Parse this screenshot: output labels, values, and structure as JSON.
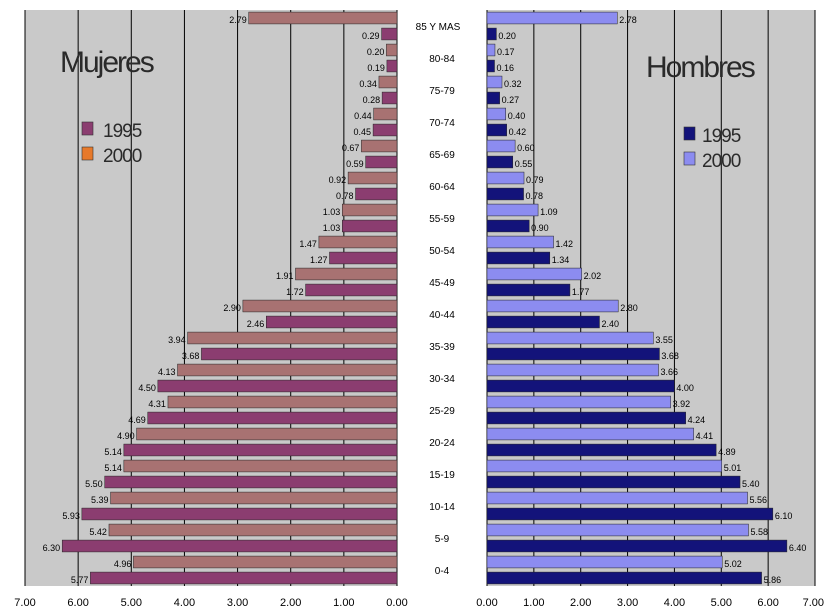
{
  "colors": {
    "plot_bg": "#c9c9c9",
    "women_1995": "#8b3d70",
    "women_2000": "#a87272",
    "women_legend_2000": "#e7792a",
    "men_1995": "#13137a",
    "men_2000": "#8c8cf0"
  },
  "chart_data": [
    {
      "type": "bar",
      "orientation": "horizontal",
      "title": "Mujeres",
      "xlim": [
        0,
        7
      ],
      "x_reversed": true,
      "x_ticks": [
        "7.00",
        "6.00",
        "5.00",
        "4.00",
        "3.00",
        "2.00",
        "1.00",
        "0.00"
      ],
      "legend": [
        "1995",
        "2000"
      ],
      "bars": [
        {
          "value": 5.77,
          "label": "5.77"
        },
        {
          "value": 4.96,
          "label": "4.96"
        },
        {
          "value": 6.3,
          "label": "6.30"
        },
        {
          "value": 5.42,
          "label": "5.42"
        },
        {
          "value": 5.93,
          "label": "5.93"
        },
        {
          "value": 5.39,
          "label": "5.39"
        },
        {
          "value": 5.5,
          "label": "5.50"
        },
        {
          "value": 5.14,
          "label": "5.14"
        },
        {
          "value": 5.14,
          "label": "5.14"
        },
        {
          "value": 4.9,
          "label": "4.90"
        },
        {
          "value": 4.69,
          "label": "4.69"
        },
        {
          "value": 4.31,
          "label": "4.31"
        },
        {
          "value": 4.5,
          "label": "4.50"
        },
        {
          "value": 4.13,
          "label": "4.13"
        },
        {
          "value": 3.68,
          "label": "3.68"
        },
        {
          "value": 3.94,
          "label": "3.94"
        },
        {
          "value": 2.46,
          "label": "2.46"
        },
        {
          "value": 2.9,
          "label": "2.90"
        },
        {
          "value": 1.72,
          "label": "1.72"
        },
        {
          "value": 1.91,
          "label": "1.91"
        },
        {
          "value": 1.27,
          "label": "1.27"
        },
        {
          "value": 1.47,
          "label": "1.47"
        },
        {
          "value": 1.03,
          "label": "1.03"
        },
        {
          "value": 1.03,
          "label": "1.03"
        },
        {
          "value": 0.78,
          "label": "0.78"
        },
        {
          "value": 0.92,
          "label": "0.92"
        },
        {
          "value": 0.59,
          "label": "0.59"
        },
        {
          "value": 0.67,
          "label": "0.67"
        },
        {
          "value": 0.45,
          "label": "0.45"
        },
        {
          "value": 0.44,
          "label": "0.44"
        },
        {
          "value": 0.28,
          "label": "0.28"
        },
        {
          "value": 0.34,
          "label": "0.34"
        },
        {
          "value": 0.19,
          "label": "0.19"
        },
        {
          "value": 0.2,
          "label": "0.20"
        },
        {
          "value": 0.29,
          "label": "0.29"
        },
        {
          "value": 2.79,
          "label": "2.79"
        }
      ]
    },
    {
      "type": "bar",
      "orientation": "horizontal",
      "title": "Hombres",
      "xlim": [
        0,
        7
      ],
      "x_ticks": [
        "0.00",
        "1.00",
        "2.00",
        "3.00",
        "4.00",
        "5.00",
        "6.00",
        "7.00"
      ],
      "legend": [
        "1995",
        "2000"
      ],
      "bars": [
        {
          "value": 5.86,
          "label": "5.86"
        },
        {
          "value": 5.02,
          "label": "5.02"
        },
        {
          "value": 6.4,
          "label": "6.40"
        },
        {
          "value": 5.58,
          "label": "5.58"
        },
        {
          "value": 6.1,
          "label": "6.10"
        },
        {
          "value": 5.56,
          "label": "5.56"
        },
        {
          "value": 5.4,
          "label": "5.40"
        },
        {
          "value": 5.01,
          "label": "5.01"
        },
        {
          "value": 4.89,
          "label": "4.89"
        },
        {
          "value": 4.41,
          "label": "4.41"
        },
        {
          "value": 4.24,
          "label": "4.24"
        },
        {
          "value": 3.92,
          "label": "3.92"
        },
        {
          "value": 4.0,
          "label": "4.00"
        },
        {
          "value": 3.66,
          "label": "3.66"
        },
        {
          "value": 3.68,
          "label": "3.68"
        },
        {
          "value": 3.55,
          "label": "3.55"
        },
        {
          "value": 2.4,
          "label": "2.40"
        },
        {
          "value": 2.8,
          "label": "2.80"
        },
        {
          "value": 1.77,
          "label": "1.77"
        },
        {
          "value": 2.02,
          "label": "2.02"
        },
        {
          "value": 1.34,
          "label": "1.34"
        },
        {
          "value": 1.42,
          "label": "1.42"
        },
        {
          "value": 0.9,
          "label": "0.90"
        },
        {
          "value": 1.09,
          "label": "1.09"
        },
        {
          "value": 0.78,
          "label": "0.78"
        },
        {
          "value": 0.79,
          "label": "0.79"
        },
        {
          "value": 0.55,
          "label": "0.55"
        },
        {
          "value": 0.6,
          "label": "0.60"
        },
        {
          "value": 0.42,
          "label": "0.42"
        },
        {
          "value": 0.4,
          "label": "0.40"
        },
        {
          "value": 0.27,
          "label": "0.27"
        },
        {
          "value": 0.32,
          "label": "0.32"
        },
        {
          "value": 0.16,
          "label": "0.16"
        },
        {
          "value": 0.17,
          "label": "0.17"
        },
        {
          "value": 0.2,
          "label": "0.20"
        },
        {
          "value": 2.78,
          "label": "2.78"
        }
      ]
    }
  ],
  "age_groups": [
    "0-4",
    "5-9",
    "10-14",
    "15-19",
    "20-24",
    "25-29",
    "30-34",
    "35-39",
    "40-44",
    "45-49",
    "50-54",
    "55-59",
    "60-64",
    "65-69",
    "70-74",
    "75-79",
    "80-84",
    "85 Y MAS"
  ],
  "age_labels_shown": [
    "0-4",
    "5-9",
    "10-14",
    "15-19",
    "20-24",
    "25-29",
    "30-34",
    "35-39",
    "40-44",
    "45-49",
    "50-54",
    "55-59",
    "60-64",
    "65-69",
    "70-74",
    "75-79",
    "80-84",
    "85 Y MAS"
  ]
}
